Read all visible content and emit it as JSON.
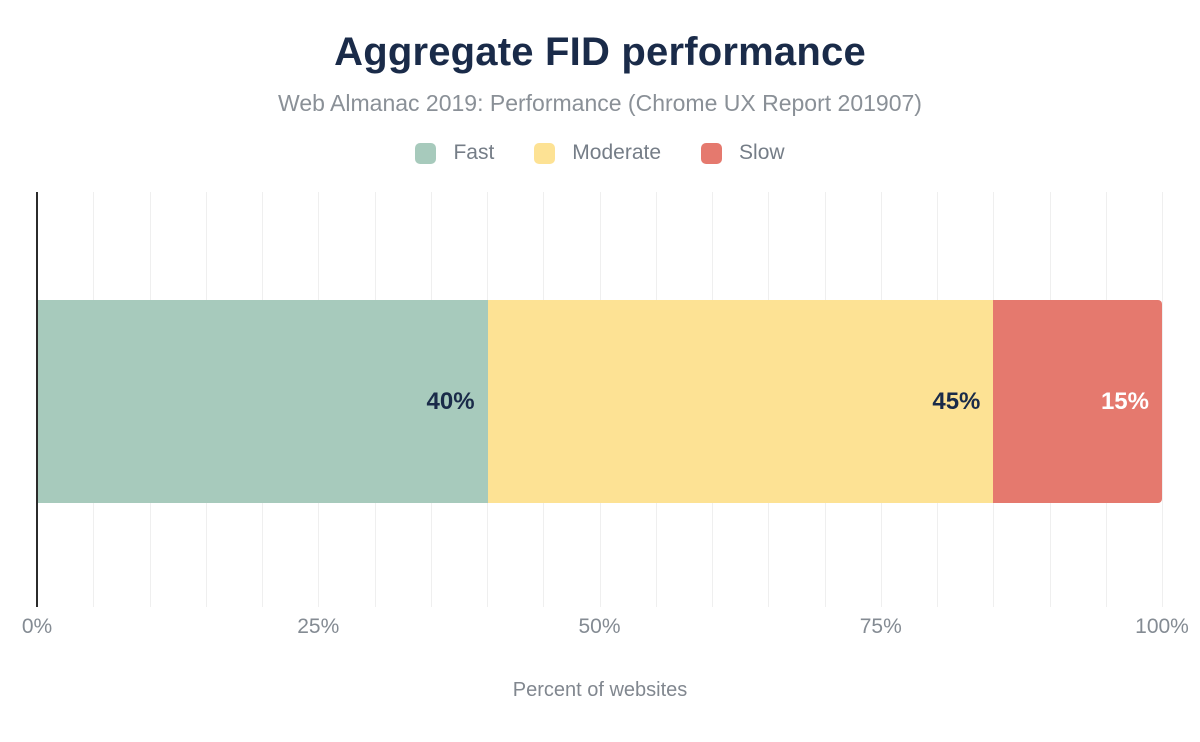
{
  "chart_data": {
    "type": "bar",
    "orientation": "horizontal",
    "stacked": true,
    "title": "Aggregate FID performance",
    "subtitle": "Web Almanac 2019: Performance (Chrome UX Report 201907)",
    "xlabel": "Percent of websites",
    "xlim": [
      0,
      100
    ],
    "grid": "vertical",
    "gridline_step_percent": 5,
    "legend_position": "top",
    "x_ticks": [
      {
        "label": "0%",
        "value": 0
      },
      {
        "label": "25%",
        "value": 25
      },
      {
        "label": "50%",
        "value": 50
      },
      {
        "label": "75%",
        "value": 75
      },
      {
        "label": "100%",
        "value": 100
      }
    ],
    "series": [
      {
        "name": "Fast",
        "value": 40,
        "data_label": "40%",
        "color": "#a7cabc",
        "label_color": "#1a2b49"
      },
      {
        "name": "Moderate",
        "value": 45,
        "data_label": "45%",
        "color": "#fde294",
        "label_color": "#1a2b49"
      },
      {
        "name": "Slow",
        "value": 15,
        "data_label": "15%",
        "color": "#e5796e",
        "label_color": "#ffffff"
      }
    ],
    "colors": {
      "title": "#1a2b49",
      "subtitle": "#8a9097",
      "legend_text": "#757d87",
      "tick_text": "#848b93",
      "axis_title_text": "#81878f",
      "axis_line": "#2b2b2b",
      "gridline": "#efefef",
      "background": "#ffffff"
    }
  }
}
